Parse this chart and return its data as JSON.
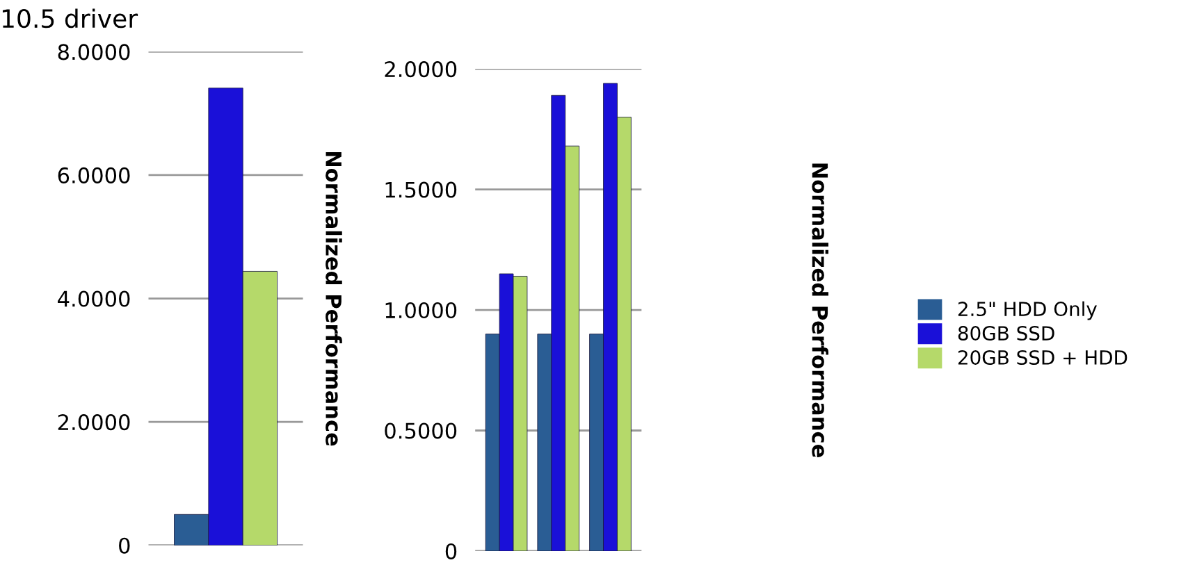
{
  "chart_data": [
    {
      "type": "bar",
      "title": "10.5 driver",
      "ylabel": "Normalized Performance",
      "categories": [
        null
      ],
      "series": [
        {
          "color": "#2a5d94",
          "values": [
            0.5
          ]
        },
        {
          "color": "#1a10d8",
          "values": [
            7.41
          ]
        },
        {
          "color": "#b5d96a",
          "values": [
            4.44
          ]
        }
      ],
      "ylim": [
        0,
        8
      ],
      "yticks": [
        {
          "value": 0,
          "label": "0"
        },
        {
          "value": 2,
          "label": "2.0000"
        },
        {
          "value": 4,
          "label": "4.0000"
        },
        {
          "value": 6,
          "label": "6.0000"
        },
        {
          "value": 8,
          "label": "8.0000"
        }
      ],
      "grid": "y",
      "tick_labels": "y"
    },
    {
      "type": "bar",
      "ylabel": "Normalized Performance",
      "categories": [
        null,
        null,
        null
      ],
      "series": [
        {
          "name": "2.5\" HDD Only",
          "color": "#2a5d94",
          "values": [
            0.9,
            0.9,
            0.9
          ]
        },
        {
          "name": "80GB SSD",
          "color": "#1a10d8",
          "values": [
            1.15,
            1.89,
            1.94
          ]
        },
        {
          "name": "20GB SSD + HDD",
          "color": "#b5d96a",
          "values": [
            1.14,
            1.68,
            1.8
          ]
        }
      ],
      "ylim": [
        0,
        2
      ],
      "yticks": [
        {
          "value": 0,
          "label": "0"
        },
        {
          "value": 0.5,
          "label": "0.5000"
        },
        {
          "value": 1,
          "label": "1.0000"
        },
        {
          "value": 1.5,
          "label": "1.5000"
        },
        {
          "value": 2,
          "label": "2.0000"
        }
      ],
      "grid": "y",
      "tick_labels": "y",
      "legend": "right"
    }
  ]
}
